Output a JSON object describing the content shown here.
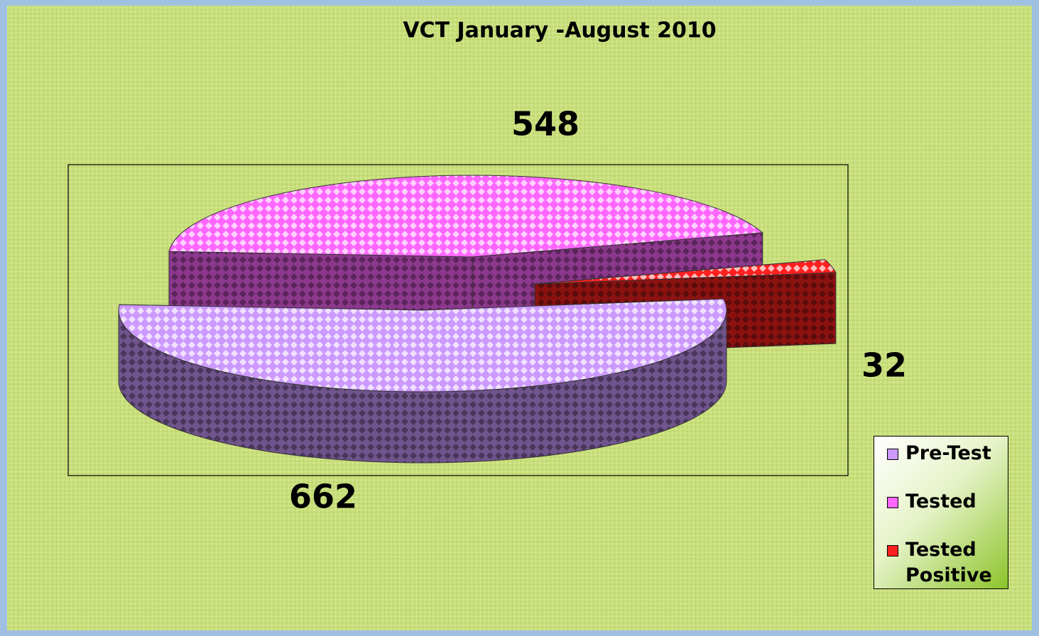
{
  "chart_data": {
    "type": "pie3d",
    "title": "VCT January -August 2010",
    "categories": [
      "Pre-Test",
      "Tested",
      "Tested Positive"
    ],
    "values": [
      662,
      548,
      32
    ],
    "colors": [
      "#cc99ff",
      "#ff66ff",
      "#ff2020"
    ],
    "legend": "right"
  }
}
